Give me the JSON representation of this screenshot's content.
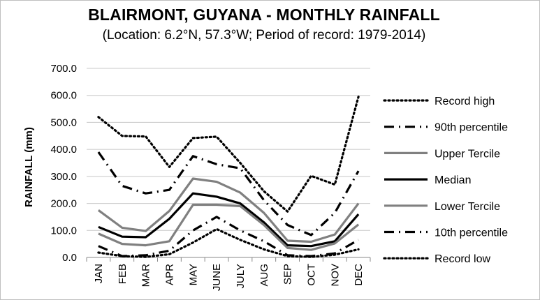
{
  "chart_data": {
    "type": "line",
    "title": "BLAIRMONT, GUYANA - MONTHLY RAINFALL",
    "subtitle": "(Location: 6.2°N, 57.3°W; Period of record: 1979-2014)",
    "ylabel": "RAINFALL (mm)",
    "xlabel": "",
    "ylim": [
      0,
      700
    ],
    "yticks": [
      "0.0",
      "100.0",
      "200.0",
      "300.0",
      "400.0",
      "500.0",
      "600.0",
      "700.0"
    ],
    "categories": [
      "JAN",
      "FEB",
      "MAR",
      "APR",
      "MAY",
      "JUNE",
      "JULY",
      "AUG",
      "SEP",
      "OCT",
      "NOV",
      "DEC"
    ],
    "grid": "horizontal",
    "legend_position": "right",
    "series": [
      {
        "name": "Record high",
        "style": "dotted",
        "color": "#000000",
        "values": [
          520,
          450,
          448,
          335,
          442,
          447,
          350,
          245,
          170,
          302,
          270,
          595
        ]
      },
      {
        "name": "90th percentile",
        "style": "dashdot",
        "color": "#000000",
        "values": [
          390,
          265,
          237,
          250,
          375,
          345,
          330,
          212,
          120,
          83,
          165,
          320
        ]
      },
      {
        "name": "Upper Tercile",
        "style": "solid",
        "color": "#808080",
        "values": [
          175,
          110,
          98,
          172,
          292,
          280,
          240,
          165,
          62,
          58,
          85,
          200
        ]
      },
      {
        "name": "Median",
        "style": "solid",
        "color": "#000000",
        "values": [
          113,
          77,
          75,
          143,
          237,
          225,
          200,
          130,
          45,
          42,
          60,
          160
        ]
      },
      {
        "name": "Lower Tercile",
        "style": "solid",
        "color": "#808080",
        "values": [
          88,
          50,
          45,
          60,
          195,
          195,
          190,
          120,
          35,
          28,
          52,
          122
        ]
      },
      {
        "name": "10th percentile",
        "style": "dashdot",
        "color": "#000000",
        "values": [
          42,
          5,
          8,
          25,
          100,
          150,
          100,
          60,
          8,
          5,
          15,
          65
        ]
      },
      {
        "name": "Record low",
        "style": "dotted",
        "color": "#000000",
        "values": [
          18,
          5,
          2,
          12,
          55,
          105,
          65,
          30,
          5,
          2,
          10,
          30
        ]
      }
    ]
  }
}
